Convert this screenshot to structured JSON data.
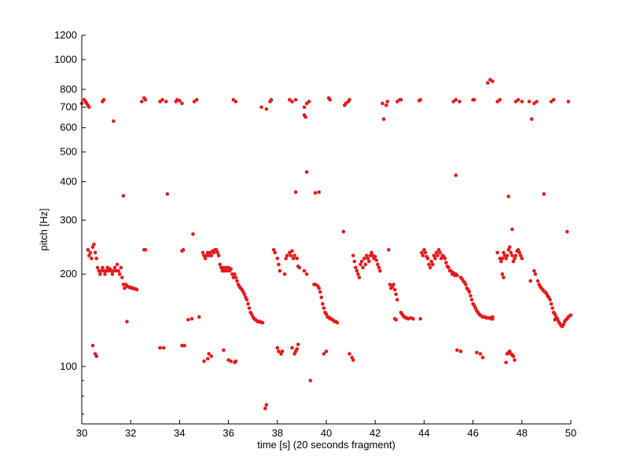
{
  "chart_data": {
    "type": "scatter",
    "title": "",
    "xlabel": "time [s] (20 seconds fragment)",
    "ylabel": "pitch [Hz]",
    "xlim": [
      30,
      50
    ],
    "ylim": [
      65,
      1200
    ],
    "yscale": "log",
    "grid": false,
    "legend": "none",
    "marker_color": "#e41a1c",
    "x_ticks": [
      30,
      32,
      34,
      36,
      38,
      40,
      42,
      44,
      46,
      48,
      50
    ],
    "x_tick_labels": [
      "30",
      "32",
      "34",
      "36",
      "38",
      "40",
      "42",
      "44",
      "46",
      "48",
      "50"
    ],
    "y_ticks": [
      100,
      200,
      300,
      400,
      500,
      600,
      700,
      800,
      1000,
      1200
    ],
    "y_tick_labels": [
      "100",
      "200",
      "300",
      "400",
      "500",
      "600",
      "700",
      "800",
      "1000",
      "1200"
    ],
    "y_minor_ticks": [
      70,
      80,
      90
    ],
    "series": [
      {
        "x": [
          30.0,
          30.1,
          30.15,
          30.2,
          30.25,
          30.3,
          30.85,
          30.9,
          31.3,
          32.45,
          32.55,
          32.6,
          33.2,
          33.3,
          33.45,
          33.85,
          33.9,
          34.0,
          34.1,
          34.6,
          34.7,
          36.2,
          36.3,
          37.35,
          37.55,
          37.7,
          37.75,
          38.5,
          38.6,
          38.75,
          39.1,
          39.1,
          39.15,
          39.2,
          39.3,
          40.1,
          40.15,
          40.75,
          40.8,
          40.9,
          40.95,
          42.3,
          42.35,
          42.45,
          42.5,
          42.9,
          43.0,
          43.05,
          43.8,
          43.85,
          45.2,
          45.3,
          45.45,
          46.0,
          46.05,
          46.6,
          46.7,
          46.8,
          47.0,
          47.1,
          47.75,
          47.85,
          48.0,
          48.3,
          48.4,
          48.5,
          48.6,
          49.2,
          49.3,
          49.9
        ],
        "y": [
          720,
          740,
          730,
          720,
          710,
          700,
          730,
          740,
          630,
          730,
          750,
          740,
          730,
          740,
          730,
          730,
          740,
          735,
          720,
          730,
          740,
          740,
          730,
          700,
          690,
          730,
          740,
          740,
          730,
          740,
          700,
          660,
          650,
          720,
          730,
          750,
          740,
          710,
          720,
          730,
          740,
          720,
          640,
          710,
          730,
          730,
          740,
          740,
          735,
          740,
          730,
          740,
          730,
          740,
          740,
          840,
          860,
          850,
          730,
          740,
          730,
          740,
          730,
          730,
          640,
          720,
          730,
          730,
          740,
          730
        ]
      },
      {
        "x": [
          31.7,
          33.5,
          34.55,
          38.75,
          39.2,
          39.55,
          39.7,
          40.7,
          45.3,
          47.45,
          47.6,
          48.9,
          49.85
        ],
        "y": [
          360,
          365,
          270,
          370,
          430,
          368,
          370,
          275,
          420,
          358,
          280,
          365,
          275
        ]
      },
      {
        "x": [
          30.25,
          30.3,
          30.35,
          30.4,
          30.45,
          30.5,
          30.55,
          30.6,
          30.65,
          30.7,
          30.75,
          30.8,
          30.85,
          30.9,
          30.95,
          31.0,
          31.05,
          31.1,
          31.15,
          31.2,
          31.25,
          31.3,
          31.35,
          31.4,
          31.45,
          31.5,
          31.55,
          31.6,
          31.65,
          31.7,
          31.75,
          31.8,
          31.85,
          31.9,
          31.95,
          32.0,
          32.05,
          32.1,
          32.15,
          32.2,
          32.25
        ],
        "y": [
          240,
          230,
          235,
          225,
          245,
          250,
          235,
          225,
          210,
          205,
          200,
          205,
          210,
          205,
          200,
          205,
          210,
          205,
          208,
          205,
          200,
          205,
          210,
          205,
          215,
          205,
          200,
          210,
          195,
          185,
          180,
          185,
          183,
          182,
          181,
          181,
          180,
          180,
          179,
          179,
          178
        ]
      },
      {
        "x": [
          32.55,
          32.6,
          34.1,
          34.15
        ],
        "y": [
          240,
          240,
          238,
          240
        ]
      },
      {
        "x": [
          34.95,
          35.0,
          35.05,
          35.1,
          35.15,
          35.2,
          35.25,
          35.3,
          35.35,
          35.4,
          35.45,
          35.5,
          35.55,
          35.6,
          35.65,
          35.7,
          35.75,
          35.8,
          35.85,
          35.9,
          35.95,
          36.0,
          36.05,
          36.1,
          36.15,
          36.2,
          36.25,
          36.3,
          36.35,
          36.4,
          36.45,
          36.5,
          36.55,
          36.6,
          36.65,
          36.7,
          36.75,
          36.8,
          36.85,
          36.9,
          36.95,
          37.0,
          37.05,
          37.1,
          37.15,
          37.2,
          37.25,
          37.3,
          37.35,
          37.4
        ],
        "y": [
          235,
          230,
          225,
          230,
          235,
          230,
          235,
          230,
          238,
          235,
          240,
          240,
          235,
          230,
          215,
          210,
          205,
          210,
          205,
          210,
          205,
          210,
          205,
          208,
          200,
          195,
          200,
          195,
          190,
          185,
          182,
          180,
          178,
          175,
          172,
          168,
          165,
          160,
          155,
          150,
          148,
          145,
          143,
          142,
          141,
          140,
          140,
          140,
          139,
          139
        ]
      },
      {
        "x": [
          37.85,
          37.9,
          38.0,
          38.05,
          38.1,
          38.3,
          38.35,
          38.4,
          38.5,
          38.55,
          38.6,
          38.65,
          38.7,
          38.8,
          38.85,
          38.9,
          39.1,
          39.2
        ],
        "y": [
          240,
          235,
          225,
          215,
          205,
          200,
          225,
          230,
          235,
          230,
          238,
          225,
          230,
          225,
          212,
          210,
          205,
          200
        ]
      },
      {
        "x": [
          39.5,
          39.55,
          39.65,
          39.7,
          39.75,
          39.8,
          39.85,
          39.9,
          39.95,
          40.0,
          40.05,
          40.1,
          40.15,
          40.2,
          40.25,
          40.3,
          40.35,
          40.4,
          40.45
        ],
        "y": [
          185,
          185,
          183,
          180,
          175,
          168,
          160,
          155,
          150,
          148,
          145,
          145,
          143,
          143,
          142,
          141,
          140,
          140,
          139
        ]
      },
      {
        "x": [
          41.1,
          41.15,
          41.2,
          41.25,
          41.3,
          41.35,
          41.4,
          41.45,
          41.5,
          41.55,
          41.6,
          41.65,
          41.7,
          41.75,
          41.8,
          41.85,
          41.9,
          41.95,
          42.0,
          42.05,
          42.1,
          42.15,
          42.2
        ],
        "y": [
          230,
          220,
          210,
          205,
          200,
          195,
          215,
          220,
          210,
          225,
          215,
          230,
          225,
          220,
          230,
          235,
          230,
          225,
          228,
          222,
          215,
          210,
          205
        ]
      },
      {
        "x": [
          42.55,
          42.6,
          42.65,
          42.7,
          42.75,
          42.8,
          42.85,
          42.9,
          43.05,
          43.1,
          43.15,
          43.2,
          43.25,
          43.3,
          43.35,
          43.45,
          43.55,
          43.85
        ],
        "y": [
          240,
          185,
          180,
          182,
          185,
          178,
          172,
          165,
          150,
          148,
          146,
          145,
          144,
          144,
          143,
          144,
          143,
          143
        ]
      },
      {
        "x": [
          43.9,
          43.95,
          44.0,
          44.05,
          44.1,
          44.15,
          44.2,
          44.25,
          44.3,
          44.35,
          44.4,
          44.45,
          44.5,
          44.55,
          44.6,
          44.65,
          44.7,
          44.75,
          44.8,
          44.85,
          44.9,
          44.95,
          45.0,
          45.05,
          45.1,
          45.15,
          45.2,
          45.25,
          45.3,
          45.35
        ],
        "y": [
          235,
          230,
          240,
          235,
          228,
          225,
          215,
          210,
          220,
          215,
          230,
          225,
          235,
          230,
          240,
          235,
          225,
          230,
          228,
          225,
          218,
          212,
          210,
          205,
          205,
          200,
          202,
          198,
          200,
          198
        ]
      },
      {
        "x": [
          45.5,
          45.55,
          45.6,
          45.65,
          45.7,
          45.75,
          45.8,
          45.85,
          45.9,
          45.95,
          46.0,
          46.05,
          46.1,
          46.15,
          46.2,
          46.25,
          46.3,
          46.35,
          46.4,
          46.45,
          46.5,
          46.55,
          46.6,
          46.65,
          46.7,
          46.75,
          46.8
        ],
        "y": [
          195,
          193,
          190,
          188,
          185,
          180,
          178,
          175,
          170,
          165,
          160,
          158,
          155,
          152,
          150,
          148,
          147,
          146,
          145,
          145,
          145,
          144,
          144,
          144,
          144,
          143,
          143
        ]
      },
      {
        "x": [
          47.0,
          47.1,
          47.15,
          47.2,
          47.25,
          47.3,
          47.35,
          47.4,
          47.45,
          47.5,
          47.55,
          47.6,
          47.65,
          47.7,
          47.75,
          47.8,
          47.85,
          47.9,
          47.95,
          48.0
        ],
        "y": [
          235,
          225,
          220,
          225,
          235,
          230,
          225,
          230,
          240,
          245,
          235,
          230,
          220,
          225,
          230,
          238,
          240,
          235,
          230,
          225
        ]
      },
      {
        "x": [
          47.2,
          47.25,
          48.35,
          48.5,
          48.55,
          48.65,
          48.7,
          48.75,
          48.8,
          48.85,
          48.9,
          48.95,
          49.0,
          49.05,
          49.1,
          49.15,
          49.2,
          49.25,
          49.3,
          49.35,
          49.4,
          49.45,
          49.5,
          49.55,
          49.6,
          49.65,
          49.7,
          49.75,
          49.8,
          49.85,
          49.9,
          49.95,
          50.0
        ],
        "y": [
          200,
          195,
          190,
          205,
          200,
          190,
          185,
          182,
          180,
          178,
          176,
          175,
          173,
          170,
          168,
          165,
          160,
          155,
          150,
          148,
          145,
          143,
          140,
          138,
          136,
          135,
          137,
          140,
          142,
          143,
          145,
          146,
          147
        ]
      },
      {
        "x": [
          31.85,
          33.2,
          33.35,
          34.8,
          35.15,
          35.2,
          35.8,
          36.0,
          36.1,
          36.3,
          37.5,
          37.55,
          38.0,
          38.05,
          38.15,
          38.2,
          38.6,
          38.7,
          38.75,
          38.8,
          38.85,
          39.35,
          39.9,
          40.0,
          40.95,
          41.05,
          41.1,
          42.8,
          42.85,
          43.55,
          45.35,
          45.5,
          46.75,
          46.8,
          47.35,
          47.4,
          47.45,
          47.5,
          47.55,
          47.6,
          47.65,
          47.7,
          49.35,
          49.45
        ],
        "y": [
          140,
          115,
          115,
          145,
          106,
          110,
          113,
          105,
          104,
          104,
          73,
          75,
          115,
          112,
          110,
          112,
          115,
          110,
          112,
          114,
          118,
          90,
          110,
          112,
          110,
          107,
          105,
          143,
          142,
          143,
          113,
          112,
          143,
          145,
          103,
          110,
          111,
          112,
          110,
          109,
          108,
          105,
          142,
          143
        ]
      },
      {
        "x": [
          30.45,
          30.55,
          30.6,
          34.1,
          34.2,
          34.35,
          34.5,
          35.0,
          35.3,
          36.25,
          46.15,
          46.3,
          46.4
        ],
        "y": [
          117,
          110,
          108,
          117,
          117,
          142,
          143,
          104,
          108,
          103,
          111,
          110,
          107
        ]
      }
    ]
  }
}
